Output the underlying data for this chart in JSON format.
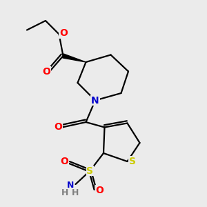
{
  "bg_color": "#ebebeb",
  "atom_colors": {
    "O": "#ff0000",
    "N": "#0000cc",
    "S_thio": "#cccc00",
    "S_sulfo": "#cccc00",
    "H": "#808080",
    "C": "#000000"
  },
  "line_width": 1.6,
  "font_size": 9,
  "xlim": [
    0,
    10
  ],
  "ylim": [
    0,
    10
  ]
}
